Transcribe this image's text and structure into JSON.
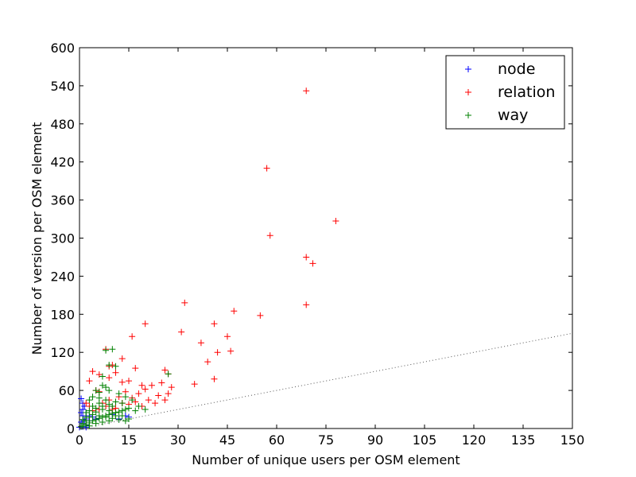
{
  "chart_data": {
    "type": "scatter",
    "xlabel": "Number of unique users per OSM element",
    "ylabel": "Number of version per OSM element",
    "xlim": [
      0,
      150
    ],
    "ylim": [
      0,
      600
    ],
    "xticks": [
      0,
      15,
      30,
      45,
      60,
      75,
      90,
      105,
      120,
      135,
      150
    ],
    "yticks": [
      0,
      60,
      120,
      180,
      240,
      300,
      360,
      420,
      480,
      540,
      600
    ],
    "grid": false,
    "legend_position": "top-right",
    "marker": "+",
    "reference_line": {
      "style": "dotted",
      "color": "#555555",
      "from": [
        0,
        0
      ],
      "to": [
        150,
        150
      ]
    },
    "series": [
      {
        "name": "node",
        "color": "#0000ff",
        "points": [
          [
            0.5,
            47
          ],
          [
            1,
            40
          ],
          [
            1,
            30
          ],
          [
            1.5,
            35
          ],
          [
            2,
            25
          ],
          [
            1,
            20
          ],
          [
            2,
            15
          ],
          [
            3,
            20
          ],
          [
            0.5,
            10
          ],
          [
            1,
            8
          ],
          [
            2,
            5
          ],
          [
            3,
            12
          ],
          [
            4,
            18
          ],
          [
            5,
            15
          ],
          [
            1,
            3
          ],
          [
            0,
            2
          ],
          [
            2,
            2
          ],
          [
            0.5,
            25
          ],
          [
            1.5,
            12
          ],
          [
            15,
            18
          ],
          [
            12,
            15
          ],
          [
            14,
            20
          ],
          [
            10,
            22
          ]
        ]
      },
      {
        "name": "relation",
        "color": "#ff0000",
        "points": [
          [
            69,
            532
          ],
          [
            57,
            410
          ],
          [
            78,
            327
          ],
          [
            58,
            304
          ],
          [
            69,
            270
          ],
          [
            71,
            260
          ],
          [
            69,
            195
          ],
          [
            32,
            198
          ],
          [
            47,
            185
          ],
          [
            55,
            178
          ],
          [
            20,
            165
          ],
          [
            41,
            165
          ],
          [
            31,
            152
          ],
          [
            45,
            145
          ],
          [
            16,
            145
          ],
          [
            37,
            135
          ],
          [
            46,
            122
          ],
          [
            42,
            120
          ],
          [
            8,
            125
          ],
          [
            39,
            105
          ],
          [
            13,
            110
          ],
          [
            10,
            100
          ],
          [
            9,
            98
          ],
          [
            17,
            95
          ],
          [
            26,
            92
          ],
          [
            4,
            90
          ],
          [
            6,
            85
          ],
          [
            11,
            88
          ],
          [
            41,
            78
          ],
          [
            35,
            70
          ],
          [
            27,
            86
          ],
          [
            15,
            75
          ],
          [
            13,
            73
          ],
          [
            3,
            75
          ],
          [
            9,
            80
          ],
          [
            19,
            68
          ],
          [
            22,
            68
          ],
          [
            25,
            72
          ],
          [
            28,
            65
          ],
          [
            20,
            62
          ],
          [
            18,
            55
          ],
          [
            24,
            52
          ],
          [
            27,
            55
          ],
          [
            14,
            58
          ],
          [
            16,
            48
          ],
          [
            21,
            45
          ],
          [
            26,
            45
          ],
          [
            23,
            40
          ],
          [
            6,
            58
          ],
          [
            12,
            50
          ],
          [
            11,
            42
          ],
          [
            8,
            35
          ],
          [
            10,
            30
          ],
          [
            7,
            40
          ],
          [
            5,
            60
          ],
          [
            9,
            45
          ],
          [
            13,
            40
          ],
          [
            15,
            38
          ],
          [
            17,
            42
          ],
          [
            19,
            35
          ],
          [
            4,
            28
          ],
          [
            3,
            35
          ],
          [
            2,
            40
          ],
          [
            6,
            30
          ],
          [
            11,
            32
          ]
        ]
      },
      {
        "name": "way",
        "color": "#008000",
        "points": [
          [
            10,
            125
          ],
          [
            8,
            123
          ],
          [
            9,
            100
          ],
          [
            11,
            98
          ],
          [
            7,
            82
          ],
          [
            27,
            86
          ],
          [
            7,
            68
          ],
          [
            8,
            65
          ],
          [
            5,
            60
          ],
          [
            6,
            57
          ],
          [
            9,
            60
          ],
          [
            4,
            50
          ],
          [
            3,
            45
          ],
          [
            6,
            48
          ],
          [
            12,
            55
          ],
          [
            14,
            50
          ],
          [
            16,
            45
          ],
          [
            18,
            35
          ],
          [
            20,
            30
          ],
          [
            13,
            40
          ],
          [
            11,
            42
          ],
          [
            9,
            38
          ],
          [
            7,
            35
          ],
          [
            5,
            32
          ],
          [
            3,
            28
          ],
          [
            2,
            25
          ],
          [
            4,
            22
          ],
          [
            6,
            20
          ],
          [
            8,
            18
          ],
          [
            10,
            16
          ],
          [
            12,
            14
          ],
          [
            14,
            12
          ],
          [
            15,
            15
          ],
          [
            13,
            20
          ],
          [
            11,
            25
          ],
          [
            9,
            28
          ],
          [
            7,
            30
          ],
          [
            5,
            26
          ],
          [
            3,
            18
          ],
          [
            2,
            12
          ],
          [
            1,
            8
          ],
          [
            1,
            5
          ],
          [
            0.5,
            3
          ],
          [
            2,
            6
          ],
          [
            3,
            9
          ],
          [
            4,
            12
          ],
          [
            5,
            14
          ],
          [
            6,
            16
          ],
          [
            7,
            18
          ],
          [
            8,
            20
          ],
          [
            9,
            22
          ],
          [
            10,
            24
          ],
          [
            11,
            20
          ],
          [
            12,
            26
          ],
          [
            13,
            28
          ],
          [
            14,
            30
          ],
          [
            15,
            32
          ],
          [
            17,
            28
          ],
          [
            6,
            40
          ],
          [
            8,
            45
          ],
          [
            10,
            35
          ],
          [
            4,
            35
          ],
          [
            2,
            18
          ],
          [
            1,
            14
          ],
          [
            3,
            4
          ],
          [
            5,
            8
          ],
          [
            7,
            10
          ],
          [
            9,
            12
          ]
        ]
      }
    ]
  }
}
